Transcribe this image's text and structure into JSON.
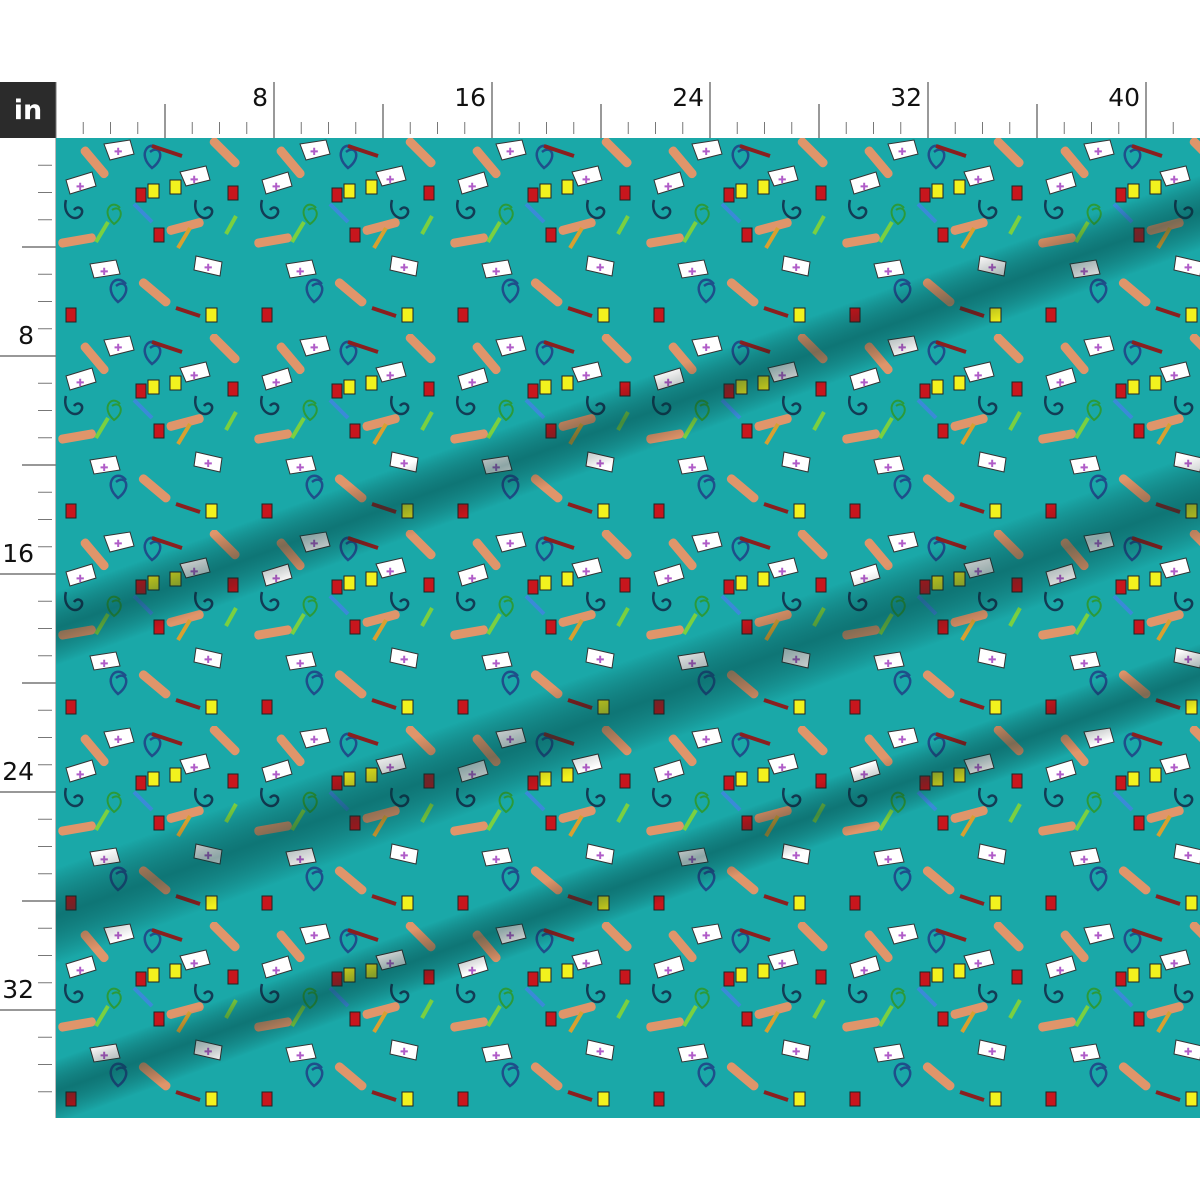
{
  "ruler": {
    "unit_label": "in",
    "horizontal_labels": [
      "8",
      "16",
      "24",
      "32",
      "40"
    ],
    "vertical_labels": [
      "8",
      "16",
      "24",
      "32"
    ]
  },
  "fabric": {
    "background_color": "#1aa8a8",
    "motif_icons": [
      "nurse-cap-icon",
      "stethoscope-icon",
      "bandage-icon",
      "syringe-icon",
      "blood-bag-icon",
      "iv-bag-icon",
      "heart-stethoscope-icon"
    ],
    "colors": {
      "nurse_cap": "#ffffff",
      "cross": "#b05cc8",
      "bandage": "#e0956a",
      "blood_bag": "#c8161d",
      "iv_bag": "#f2f21e",
      "stethoscope": "#1e4f8a",
      "syringe": "#8a1f1f"
    }
  }
}
